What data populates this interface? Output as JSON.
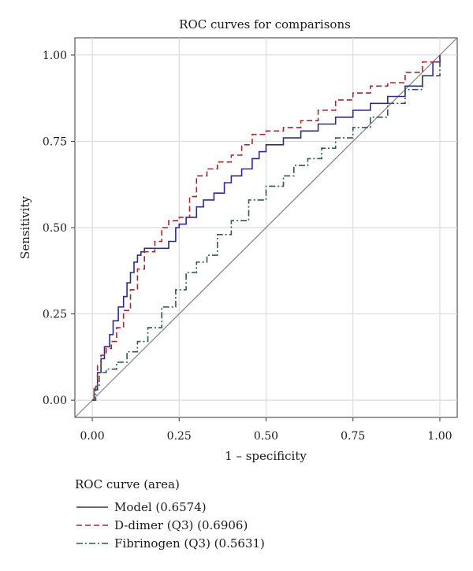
{
  "chart_data": {
    "type": "line",
    "title": "ROC curves for comparisons",
    "xlabel": "1 – specificity",
    "ylabel": "Sensitivity",
    "xlim": [
      -0.05,
      1.05
    ],
    "ylim": [
      -0.05,
      1.05
    ],
    "xticks": [
      0,
      0.25,
      0.5,
      0.75,
      1
    ],
    "yticks": [
      0,
      0.25,
      0.5,
      0.75,
      1
    ],
    "xtick_labels": [
      "0.00",
      "0.25",
      "0.50",
      "0.75",
      "1.00"
    ],
    "ytick_labels": [
      "0.00",
      "0.25",
      "0.50",
      "0.75",
      "1.00"
    ],
    "grid": true,
    "reference_line": true,
    "legend": {
      "title": "ROC curve (area)",
      "placement": "bottom"
    },
    "series": [
      {
        "name": "Model (0.6574)",
        "color": "#2e2a8c",
        "dash": "solid",
        "x": [
          0,
          0.005,
          0.015,
          0.025,
          0.035,
          0.05,
          0.06,
          0.075,
          0.09,
          0.1,
          0.11,
          0.12,
          0.13,
          0.14,
          0.15,
          0.17,
          0.2,
          0.22,
          0.24,
          0.25,
          0.27,
          0.3,
          0.32,
          0.35,
          0.38,
          0.4,
          0.43,
          0.46,
          0.48,
          0.5,
          0.55,
          0.6,
          0.65,
          0.7,
          0.75,
          0.8,
          0.85,
          0.9,
          0.95,
          0.98,
          1
        ],
        "y": [
          0,
          0.03,
          0.08,
          0.12,
          0.155,
          0.19,
          0.23,
          0.27,
          0.3,
          0.34,
          0.37,
          0.4,
          0.42,
          0.43,
          0.44,
          0.44,
          0.44,
          0.46,
          0.5,
          0.51,
          0.53,
          0.56,
          0.58,
          0.6,
          0.63,
          0.65,
          0.67,
          0.7,
          0.72,
          0.74,
          0.76,
          0.78,
          0.8,
          0.82,
          0.84,
          0.86,
          0.88,
          0.91,
          0.94,
          0.98,
          1
        ]
      },
      {
        "name": "D-dimer (Q3) (0.6906)",
        "color": "#a8262e",
        "dash": "dashed",
        "x": [
          0,
          0.005,
          0.015,
          0.025,
          0.04,
          0.055,
          0.07,
          0.09,
          0.11,
          0.13,
          0.15,
          0.18,
          0.2,
          0.22,
          0.25,
          0.28,
          0.3,
          0.33,
          0.36,
          0.4,
          0.43,
          0.46,
          0.48,
          0.5,
          0.55,
          0.6,
          0.65,
          0.7,
          0.75,
          0.8,
          0.85,
          0.9,
          0.95,
          1
        ],
        "y": [
          0,
          0.04,
          0.1,
          0.13,
          0.15,
          0.17,
          0.21,
          0.26,
          0.32,
          0.38,
          0.43,
          0.46,
          0.5,
          0.52,
          0.53,
          0.59,
          0.65,
          0.67,
          0.69,
          0.71,
          0.74,
          0.77,
          0.77,
          0.78,
          0.79,
          0.81,
          0.84,
          0.87,
          0.89,
          0.91,
          0.92,
          0.95,
          0.98,
          1
        ]
      },
      {
        "name": "Fibrinogen (Q3) (0.5631)",
        "color": "#2f5a4c",
        "dash": "dashdot",
        "x": [
          0,
          0.01,
          0.02,
          0.04,
          0.07,
          0.1,
          0.13,
          0.16,
          0.2,
          0.24,
          0.27,
          0.3,
          0.33,
          0.36,
          0.4,
          0.45,
          0.5,
          0.55,
          0.58,
          0.62,
          0.66,
          0.7,
          0.75,
          0.8,
          0.85,
          0.9,
          0.95,
          1
        ],
        "y": [
          0,
          0.04,
          0.08,
          0.09,
          0.11,
          0.14,
          0.17,
          0.21,
          0.27,
          0.32,
          0.37,
          0.4,
          0.42,
          0.48,
          0.52,
          0.58,
          0.62,
          0.65,
          0.68,
          0.7,
          0.73,
          0.76,
          0.79,
          0.82,
          0.86,
          0.9,
          0.94,
          1
        ]
      }
    ]
  }
}
